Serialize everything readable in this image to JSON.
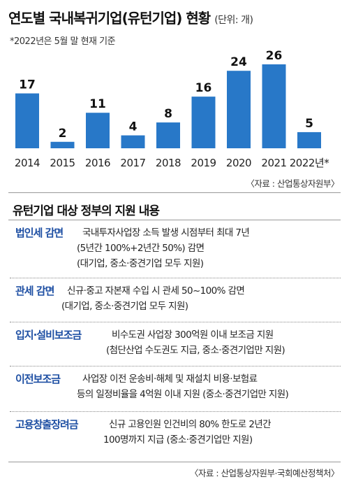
{
  "title": "연도별 국내복귀기업(유턴기업) 현황",
  "unit": "(단위: 개)",
  "note": "*2022년은 5월 말 현재 기준",
  "chart_source": "〈자료 : 산업통상자원부〉",
  "subtitle": "유턴기업 대상 정부의 지원 내용",
  "colors": {
    "bar": "#2878c8",
    "label": "#1e4fa3"
  },
  "chart_data": {
    "type": "bar",
    "title": "연도별 국내복귀기업(유턴기업) 현황",
    "categories": [
      "2014",
      "2015",
      "2016",
      "2017",
      "2018",
      "2019",
      "2020",
      "2021",
      "2022년*"
    ],
    "values": [
      17,
      2,
      11,
      4,
      8,
      16,
      24,
      26,
      5
    ],
    "ylim": [
      0,
      26
    ],
    "grid": false,
    "legend": "none"
  },
  "supports": [
    {
      "label": "법인세 감면",
      "lines": [
        "국내투자사업장 소득 발생 시점부터 최대 7년",
        "(5년간 100%+2년간 50%) 감면",
        "(대기업, 중소·중견기업 모두 지원)"
      ]
    },
    {
      "label": "관세 감면",
      "lines": [
        "신규·중고 자본재 수입 시 관세 50~100% 감면",
        "(대기업, 중소·중견기업 모두 지원)"
      ]
    },
    {
      "label": "입지·설비보조금",
      "lines": [
        "비수도권 사업장 300억원 이내 보조금 지원",
        "(첨단산업 수도권도 지급, 중소·중견기업만 지원)"
      ]
    },
    {
      "label": "이전보조금",
      "lines": [
        "사업장 이전 운송비·해체 및 재설치 비용·보험료",
        "등의 일정비율을 4억원 이내 지원 (중소·중견기업만 지원)"
      ]
    },
    {
      "label": "고용창출장려금",
      "lines": [
        "신규 고용인원 인건비의 80% 한도로 2년간",
        "100명까지 지급 (중소·중견기업만 지원)"
      ]
    }
  ],
  "footer_source": "〈자료 : 산업통상자원부·국회예산정책처〉"
}
